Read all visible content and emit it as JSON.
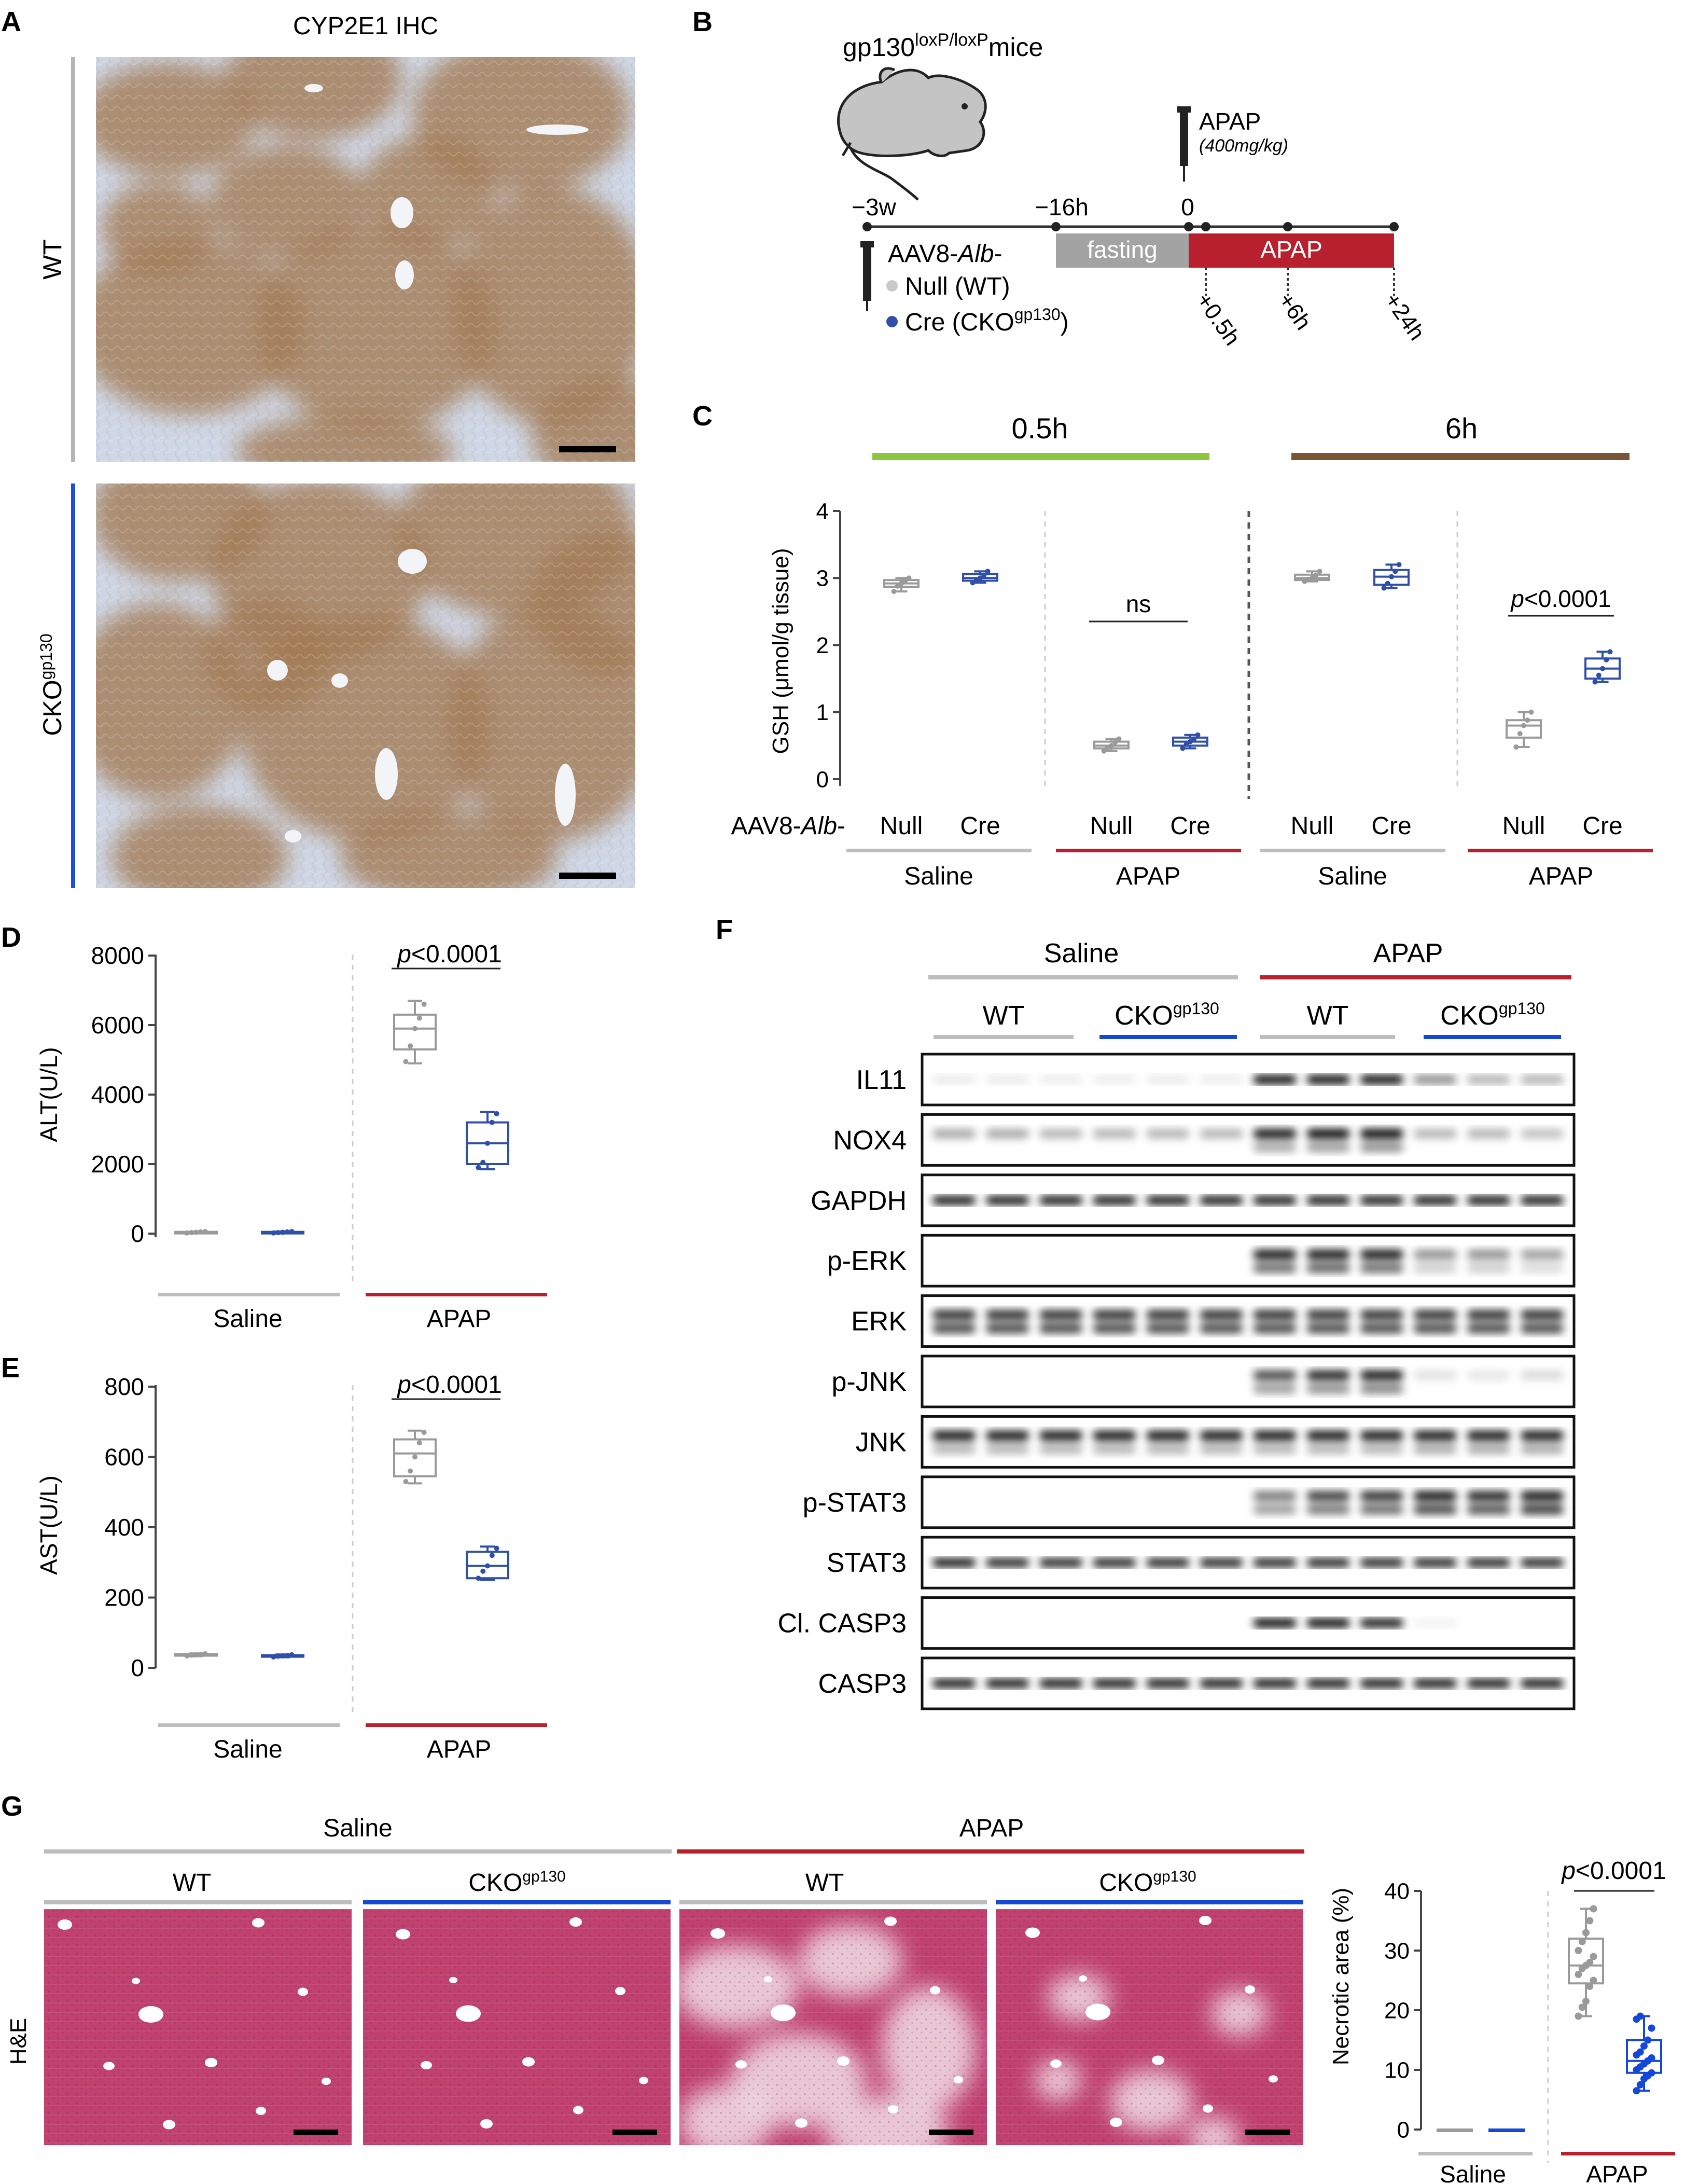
{
  "panel_letters": {
    "a": "A",
    "b": "B",
    "c": "C",
    "d": "D",
    "e": "E",
    "f": "F",
    "g": "G"
  },
  "colors": {
    "wt_gray": "#9a9a9a",
    "cko_blue": "#2f4fa8",
    "cko_bright": "#1547d8",
    "saline_gray": "#bdbdbd",
    "apap_red": "#b8202e",
    "green": "#8cc63f",
    "brown": "#7a5533",
    "ihc_bg": "#cfd7e6",
    "ihc_brown": "#a47c56",
    "he_pink": "#c0406e",
    "he_pale": "#f1dde6"
  },
  "panel_a": {
    "title": "CYP2E1 IHC",
    "rows": [
      {
        "label": "WT",
        "label_sup": ""
      },
      {
        "label": "CKO",
        "label_sup": "gp130"
      }
    ]
  },
  "panel_b": {
    "mouse_title": "gp130",
    "mouse_title_sup": "loxP/loxP",
    "mouse_title_end": "mice",
    "timepoints": [
      "−3w",
      "−16h",
      "0"
    ],
    "post_timepoints": [
      "+0.5h",
      "+6h",
      "+24h"
    ],
    "fasting_label": "fasting",
    "apap_bar_label": "APAP",
    "inj_label": "APAP",
    "inj_dose": "(400mg/kg)",
    "aav_label": "AAV8-",
    "aav_italic": "Alb",
    "aav_dash": "-",
    "legend": [
      {
        "text": "Null (WT)",
        "sup": "",
        "end": ""
      },
      {
        "text": "Cre (CKO",
        "sup": "gp130",
        "end": ")"
      }
    ]
  },
  "panel_c": {
    "headers": [
      "0.5h",
      "6h"
    ],
    "ylabel": "GSH (μmol/g tissue)",
    "yticks": [
      "0",
      "1",
      "2",
      "3",
      "4"
    ],
    "row_label": "AAV8-",
    "row_label_italic": "Alb",
    "row_label_end": "-",
    "x_labels": [
      "Null",
      "Cre",
      "Null",
      "Cre",
      "Null",
      "Cre",
      "Null",
      "Cre"
    ],
    "group_labels": [
      "Saline",
      "APAP",
      "Saline",
      "APAP"
    ],
    "annotations": [
      {
        "text": "ns",
        "italic": false
      },
      {
        "text": "p<0.0001",
        "italic": true
      }
    ]
  },
  "panel_d": {
    "ylabel": "ALT(U/L)",
    "yticks": [
      "0",
      "2000",
      "4000",
      "6000",
      "8000"
    ],
    "group_labels": [
      "Saline",
      "APAP"
    ],
    "annotation": "p<0.0001"
  },
  "panel_e": {
    "ylabel": "AST(U/L)",
    "yticks": [
      "0",
      "200",
      "400",
      "600",
      "800"
    ],
    "group_labels": [
      "Saline",
      "APAP"
    ],
    "annotation": "p<0.0001"
  },
  "panel_f": {
    "top_labels": [
      "Saline",
      "APAP"
    ],
    "sub_labels": [
      {
        "text": "WT",
        "sup": ""
      },
      {
        "text": "CKO",
        "sup": "gp130"
      },
      {
        "text": "WT",
        "sup": ""
      },
      {
        "text": "CKO",
        "sup": "gp130"
      }
    ],
    "blots": [
      "IL11",
      "NOX4",
      "GAPDH",
      "p-ERK",
      "ERK",
      "p-JNK",
      "JNK",
      "p-STAT3",
      "STAT3",
      "Cl. CASP3",
      "CASP3"
    ]
  },
  "panel_g": {
    "top_labels": [
      "Saline",
      "APAP"
    ],
    "sub_labels": [
      {
        "text": "WT",
        "sup": ""
      },
      {
        "text": "CKO",
        "sup": "gp130"
      },
      {
        "text": "WT",
        "sup": ""
      },
      {
        "text": "CKO",
        "sup": "gp130"
      }
    ],
    "row_label": "H&E",
    "ylabel": "Necrotic area (%)",
    "yticks": [
      "0",
      "10",
      "20",
      "30",
      "40"
    ],
    "group_labels": [
      "Saline",
      "APAP"
    ],
    "annotation": "p<0.0001"
  },
  "chart_data": [
    {
      "type": "box",
      "id": "C",
      "title": "GSH",
      "ylabel": "GSH (μmol/g tissue)",
      "ylim": [
        0,
        4
      ],
      "groups": [
        {
          "timepoint": "0.5h",
          "treatment": "Saline",
          "genotype": "Null",
          "min": 2.8,
          "q1": 2.87,
          "median": 2.92,
          "q3": 2.97,
          "max": 3.0,
          "points": [
            2.8,
            2.88,
            2.92,
            2.95,
            3.0
          ]
        },
        {
          "timepoint": "0.5h",
          "treatment": "Saline",
          "genotype": "Cre",
          "min": 2.93,
          "q1": 2.96,
          "median": 3.0,
          "q3": 3.06,
          "max": 3.1,
          "points": [
            2.93,
            2.97,
            3.0,
            3.04,
            3.1
          ]
        },
        {
          "timepoint": "0.5h",
          "treatment": "APAP",
          "genotype": "Null",
          "min": 0.42,
          "q1": 0.46,
          "median": 0.5,
          "q3": 0.56,
          "max": 0.6,
          "points": [
            0.42,
            0.47,
            0.5,
            0.55,
            0.6
          ]
        },
        {
          "timepoint": "0.5h",
          "treatment": "APAP",
          "genotype": "Cre",
          "min": 0.46,
          "q1": 0.5,
          "median": 0.56,
          "q3": 0.62,
          "max": 0.66,
          "points": [
            0.46,
            0.52,
            0.56,
            0.6,
            0.66
          ]
        },
        {
          "timepoint": "6h",
          "treatment": "Saline",
          "genotype": "Null",
          "min": 2.95,
          "q1": 2.97,
          "median": 3.0,
          "q3": 3.05,
          "max": 3.1,
          "points": [
            2.95,
            2.98,
            3.0,
            3.04,
            3.1
          ]
        },
        {
          "timepoint": "6h",
          "treatment": "Saline",
          "genotype": "Cre",
          "min": 2.85,
          "q1": 2.9,
          "median": 3.02,
          "q3": 3.12,
          "max": 3.2,
          "points": [
            2.85,
            2.92,
            3.02,
            3.1,
            3.2
          ]
        },
        {
          "timepoint": "6h",
          "treatment": "APAP",
          "genotype": "Null",
          "min": 0.48,
          "q1": 0.62,
          "median": 0.8,
          "q3": 0.88,
          "max": 1.0,
          "points": [
            0.48,
            0.68,
            0.8,
            0.88,
            1.0
          ]
        },
        {
          "timepoint": "6h",
          "treatment": "APAP",
          "genotype": "Cre",
          "min": 1.45,
          "q1": 1.5,
          "median": 1.65,
          "q3": 1.8,
          "max": 1.9,
          "points": [
            1.45,
            1.55,
            1.65,
            1.78,
            1.9
          ]
        }
      ]
    },
    {
      "type": "box",
      "id": "D",
      "title": "ALT",
      "ylabel": "ALT(U/L)",
      "ylim": [
        0,
        8000
      ],
      "groups": [
        {
          "treatment": "Saline",
          "genotype": "WT",
          "min": 20,
          "q1": 30,
          "median": 40,
          "q3": 50,
          "max": 60,
          "points": [
            20,
            30,
            40,
            50,
            60
          ]
        },
        {
          "treatment": "Saline",
          "genotype": "CKO",
          "min": 20,
          "q1": 30,
          "median": 40,
          "q3": 50,
          "max": 60,
          "points": [
            20,
            30,
            40,
            50,
            60
          ]
        },
        {
          "treatment": "APAP",
          "genotype": "WT",
          "min": 4900,
          "q1": 5300,
          "median": 5900,
          "q3": 6300,
          "max": 6700,
          "points": [
            4950,
            5400,
            5900,
            6200,
            6600
          ]
        },
        {
          "treatment": "APAP",
          "genotype": "CKO",
          "min": 1850,
          "q1": 2000,
          "median": 2600,
          "q3": 3200,
          "max": 3500,
          "points": [
            1900,
            2050,
            2600,
            3200,
            3450
          ]
        }
      ]
    },
    {
      "type": "box",
      "id": "E",
      "title": "AST",
      "ylabel": "AST(U/L)",
      "ylim": [
        0,
        800
      ],
      "groups": [
        {
          "treatment": "Saline",
          "genotype": "WT",
          "min": 33,
          "q1": 35,
          "median": 37,
          "q3": 39,
          "max": 41,
          "points": [
            34,
            36,
            37,
            38,
            40
          ]
        },
        {
          "treatment": "Saline",
          "genotype": "CKO",
          "min": 30,
          "q1": 32,
          "median": 34,
          "q3": 36,
          "max": 38,
          "points": [
            31,
            33,
            34,
            35,
            37
          ]
        },
        {
          "treatment": "APAP",
          "genotype": "WT",
          "min": 525,
          "q1": 545,
          "median": 610,
          "q3": 650,
          "max": 675,
          "points": [
            530,
            560,
            600,
            640,
            670
          ]
        },
        {
          "treatment": "APAP",
          "genotype": "CKO",
          "min": 250,
          "q1": 255,
          "median": 290,
          "q3": 330,
          "max": 345,
          "points": [
            255,
            275,
            290,
            320,
            340
          ]
        }
      ]
    },
    {
      "type": "box",
      "id": "G",
      "title": "Necrotic area",
      "ylabel": "Necrotic area (%)",
      "ylim": [
        0,
        40
      ],
      "groups": [
        {
          "treatment": "Saline",
          "genotype": "WT",
          "min": 0,
          "q1": 0,
          "median": 0,
          "q3": 0,
          "max": 0,
          "points": []
        },
        {
          "treatment": "Saline",
          "genotype": "CKO",
          "min": 0,
          "q1": 0,
          "median": 0,
          "q3": 0,
          "max": 0,
          "points": []
        },
        {
          "treatment": "APAP",
          "genotype": "WT",
          "min": 19,
          "q1": 24.5,
          "median": 27.5,
          "q3": 32,
          "max": 37,
          "points": [
            19,
            20.5,
            21.5,
            24,
            25,
            26,
            27,
            27.5,
            28,
            29,
            30,
            31.5,
            33,
            35,
            37
          ]
        },
        {
          "treatment": "APAP",
          "genotype": "CKO",
          "min": 6.5,
          "q1": 9.5,
          "median": 11.5,
          "q3": 15,
          "max": 19,
          "points": [
            6.5,
            7.5,
            8.5,
            9,
            9.5,
            10,
            10.5,
            11,
            11.5,
            12,
            12.5,
            13,
            14,
            15,
            17,
            18.5,
            19
          ]
        }
      ]
    }
  ],
  "blot_data": {
    "IL11": {
      "bands": [
        [
          0.08,
          0.08,
          0.07,
          0.07,
          0.08,
          0.07,
          0.95,
          0.95,
          0.95,
          0.45,
          0.3,
          0.3
        ]
      ],
      "doublet": false
    },
    "NOX4": {
      "bands": [
        [
          0.35,
          0.35,
          0.3,
          0.3,
          0.3,
          0.3,
          0.95,
          1,
          1,
          0.3,
          0.3,
          0.25
        ],
        [
          0,
          0,
          0,
          0,
          0,
          0,
          0.35,
          0.4,
          0.45,
          0,
          0,
          0
        ]
      ],
      "doublet": true
    },
    "GAPDH": {
      "bands": [
        [
          0.9,
          0.9,
          0.9,
          0.9,
          0.9,
          0.9,
          0.9,
          0.9,
          0.9,
          0.9,
          0.9,
          0.9
        ]
      ],
      "doublet": false
    },
    "p-ERK": {
      "bands": [
        [
          0,
          0,
          0,
          0,
          0,
          0,
          0.95,
          0.95,
          0.95,
          0.45,
          0.45,
          0.4
        ],
        [
          0,
          0,
          0,
          0,
          0,
          0,
          0.6,
          0.65,
          0.6,
          0.2,
          0.2,
          0.15
        ]
      ],
      "doublet": true
    },
    "ERK": {
      "bands": [
        [
          0.85,
          0.85,
          0.85,
          0.85,
          0.85,
          0.85,
          0.85,
          0.85,
          0.85,
          0.85,
          0.85,
          0.85
        ],
        [
          0.75,
          0.75,
          0.75,
          0.75,
          0.75,
          0.75,
          0.75,
          0.75,
          0.75,
          0.75,
          0.75,
          0.75
        ]
      ],
      "doublet": true
    },
    "p-JNK": {
      "bands": [
        [
          0,
          0,
          0,
          0,
          0,
          0,
          0.75,
          0.9,
          0.95,
          0.12,
          0.1,
          0.15
        ],
        [
          0,
          0,
          0,
          0,
          0,
          0,
          0.4,
          0.45,
          0.5,
          0,
          0,
          0
        ]
      ],
      "doublet": true
    },
    "JNK": {
      "bands": [
        [
          0.95,
          0.95,
          0.95,
          0.95,
          0.95,
          0.95,
          0.95,
          0.95,
          0.95,
          0.95,
          0.95,
          0.95
        ],
        [
          0.3,
          0.3,
          0.3,
          0.3,
          0.3,
          0.3,
          0.3,
          0.3,
          0.3,
          0.35,
          0.35,
          0.35
        ]
      ],
      "doublet": true
    },
    "p-STAT3": {
      "bands": [
        [
          0,
          0,
          0,
          0,
          0,
          0,
          0.55,
          0.8,
          0.85,
          0.95,
          0.9,
          0.95
        ],
        [
          0,
          0,
          0,
          0,
          0,
          0,
          0.4,
          0.55,
          0.6,
          0.75,
          0.7,
          0.8
        ]
      ],
      "doublet": true
    },
    "STAT3": {
      "bands": [
        [
          0.9,
          0.85,
          0.85,
          0.85,
          0.85,
          0.85,
          0.85,
          0.85,
          0.85,
          0.85,
          0.85,
          0.85
        ]
      ],
      "doublet": false
    },
    "Cl. CASP3": {
      "bands": [
        [
          0,
          0,
          0,
          0,
          0,
          0,
          0.95,
          0.95,
          0.9,
          0.05,
          0,
          0
        ]
      ],
      "doublet": false
    },
    "CASP3": {
      "bands": [
        [
          0.9,
          0.9,
          0.9,
          0.9,
          0.9,
          0.9,
          0.9,
          0.9,
          0.9,
          0.9,
          0.9,
          0.9
        ]
      ],
      "doublet": false
    }
  }
}
